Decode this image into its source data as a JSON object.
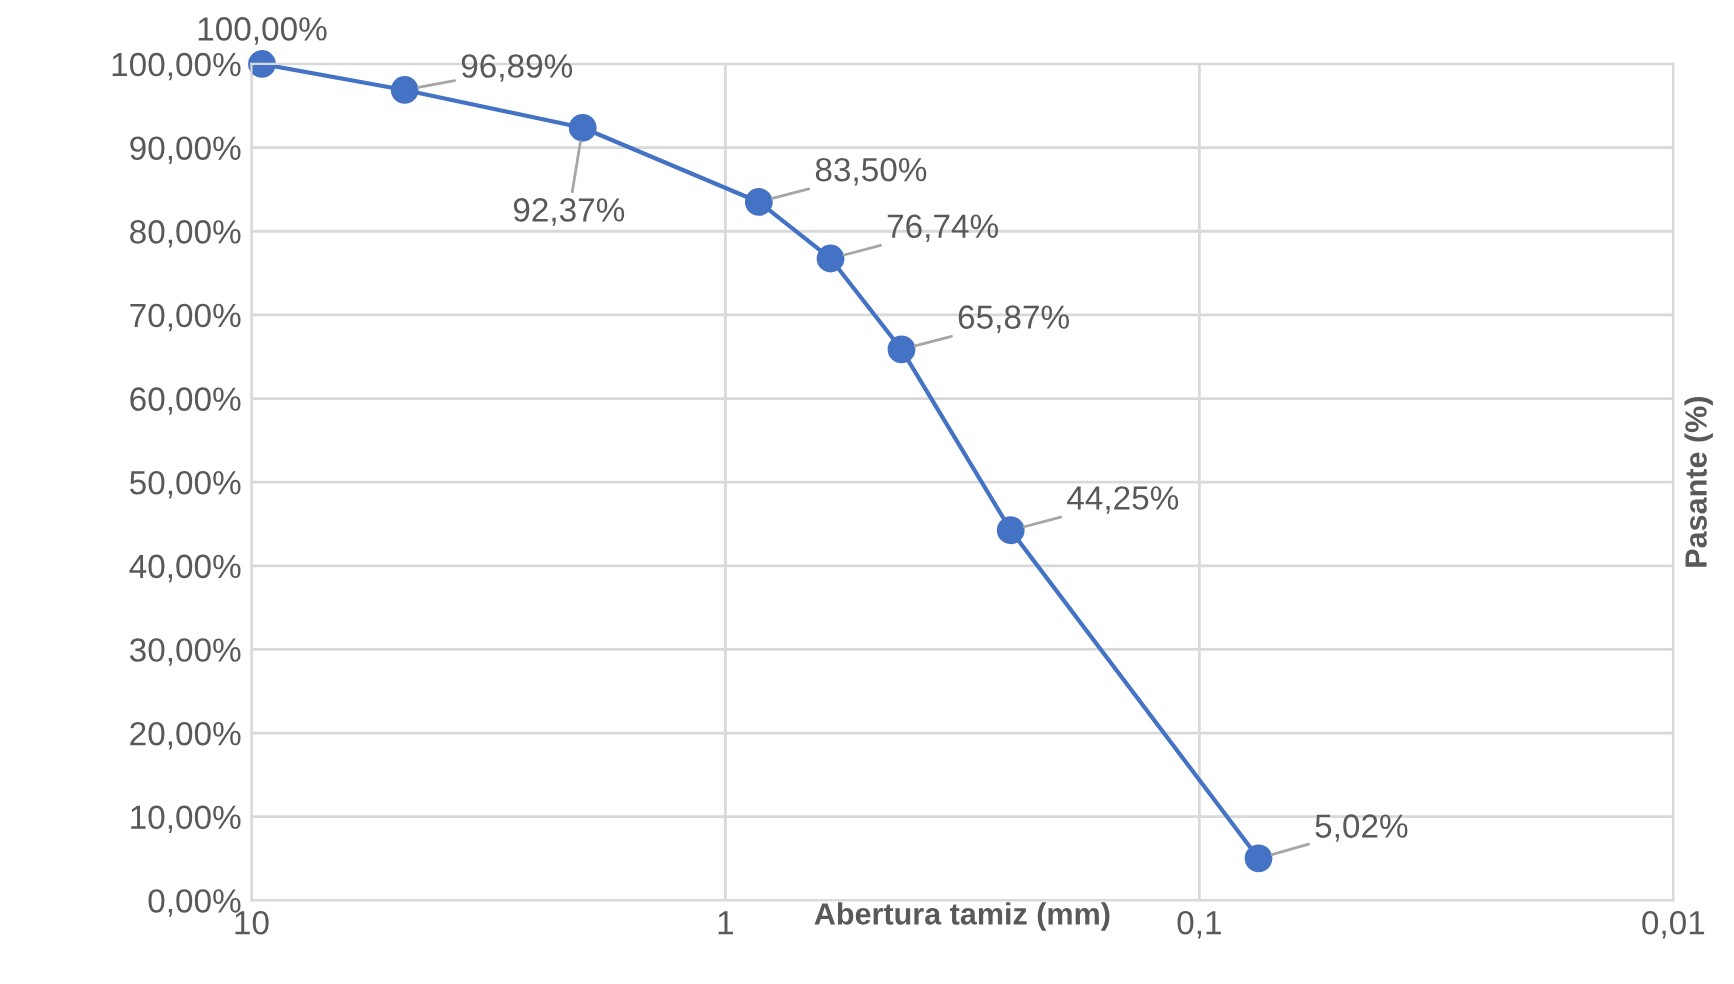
{
  "chart_data": {
    "type": "line",
    "xlabel": "Abertura tamiz (mm)",
    "ylabel": "Pasante (%)",
    "x": [
      9.5,
      4.75,
      2.0,
      0.85,
      0.6,
      0.425,
      0.25,
      0.075
    ],
    "series": [
      {
        "color": "#4472c4",
        "values": [
          100.0,
          96.89,
          92.37,
          83.5,
          76.74,
          65.87,
          44.25,
          5.02
        ],
        "value_labels": [
          "100,00%",
          "96,89%",
          "92,37%",
          "83,50%",
          "76,74%",
          "65,87%",
          "44,25%",
          "5,02%"
        ]
      }
    ],
    "log": "x",
    "xlim": [
      10,
      0.01
    ],
    "xticks": [
      10,
      1,
      {
        "value": 0.1,
        "label": "0,1"
      },
      {
        "value": 0.01,
        "label": "0,01"
      }
    ],
    "ylim": [
      0,
      100
    ],
    "yticks": [
      {
        "value": 0,
        "label": "0,00%"
      },
      {
        "value": 10,
        "label": "10,00%"
      },
      {
        "value": 20,
        "label": "20,00%"
      },
      {
        "value": 30,
        "label": "30,00%"
      },
      {
        "value": 40,
        "label": "40,00%"
      },
      {
        "value": 50,
        "label": "50,00%"
      },
      {
        "value": 60,
        "label": "60,00%"
      },
      {
        "value": 70,
        "label": "70,00%"
      },
      {
        "value": 80,
        "label": "80,00%"
      },
      {
        "value": 90,
        "label": "90,00%"
      },
      {
        "value": 100,
        "label": "100,00%"
      }
    ],
    "grid": true,
    "marker": "circle",
    "line_style": "solid"
  }
}
